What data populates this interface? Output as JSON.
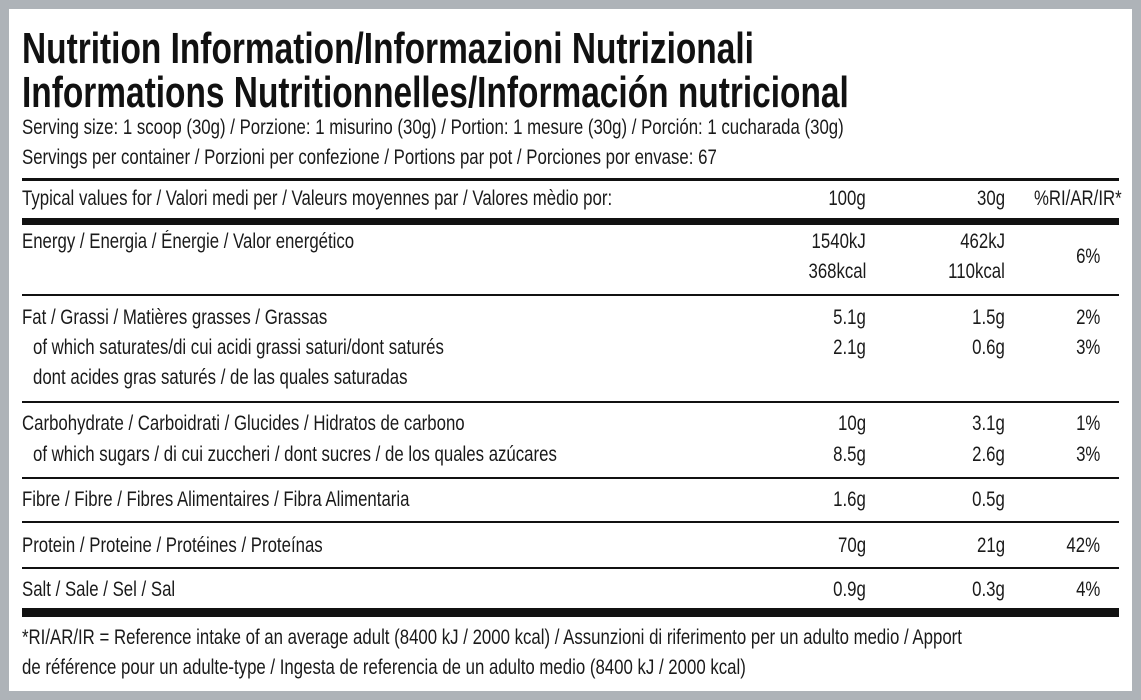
{
  "title": {
    "line1": "Nutrition Information/Informazioni Nutrizionali",
    "line2": "Informations Nutritionnelles/Información nutricional"
  },
  "serving_size": "Serving size: 1 scoop (30g) / Porzione: 1 misurino (30g) / Portion: 1 mesure (30g) / Porción: 1 cucharada (30g)",
  "servings_per_container": "Servings per container / Porzioni per confezione / Portions par pot / Porciones por envase: 67",
  "table": {
    "header": {
      "label": "Typical values for / Valori medi per / Valeurs moyennes par / Valores mèdio por:",
      "col_100g": "100g",
      "col_30g": "30g",
      "col_ri": "%RI/AR/IR*"
    },
    "energy": {
      "label": "Energy / Energia / Énergie / Valor energético",
      "kj_100g": "1540kJ",
      "kcal_100g": "368kcal",
      "kj_30g": "462kJ",
      "kcal_30g": "110kcal",
      "ri": "6%"
    },
    "fat": {
      "label": "Fat / Grassi / Matières grasses / Grassas",
      "v100": "5.1g",
      "v30": "1.5g",
      "ri": "2%"
    },
    "saturates": {
      "label_line1": "of which saturates/di cui acidi grassi saturi/dont saturés",
      "label_line2": "dont acides gras saturés / de las quales saturadas",
      "v100": "2.1g",
      "v30": "0.6g",
      "ri": "3%"
    },
    "carbohydrate": {
      "label": "Carbohydrate / Carboidrati / Glucides / Hidratos de carbono",
      "v100": "10g",
      "v30": "3.1g",
      "ri": "1%"
    },
    "sugars": {
      "label": "of which sugars / di cui zuccheri / dont sucres / de los quales azúcares",
      "v100": "8.5g",
      "v30": "2.6g",
      "ri": "3%"
    },
    "fibre": {
      "label": "Fibre / Fibre / Fibres Alimentaires / Fibra Alimentaria",
      "v100": "1.6g",
      "v30": "0.5g"
    },
    "protein": {
      "label": "Protein / Proteine / Protéines / Proteínas",
      "v100": "70g",
      "v30": "21g",
      "ri": "42%"
    },
    "salt": {
      "label": "Salt / Sale / Sel / Sal",
      "v100": "0.9g",
      "v30": "0.3g",
      "ri": "4%"
    }
  },
  "footnote": {
    "line1": "*RI/AR/IR = Reference intake of an average adult (8400 kJ / 2000 kcal)  / Assunzioni di riferimento per un adulto medio / Apport",
    "line2": "de référence pour un adulte-type / Ingesta de referencia de un adulto medio (8400 kJ / 2000 kcal)"
  }
}
